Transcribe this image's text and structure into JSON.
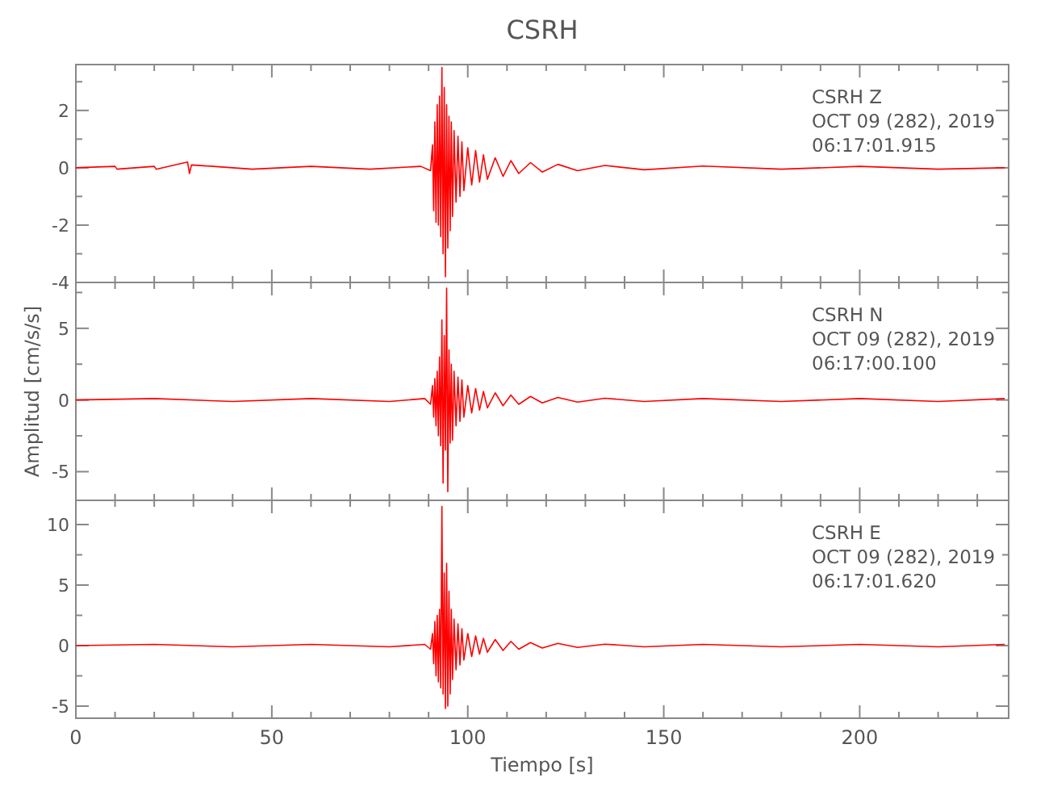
{
  "chart_data": [
    {
      "type": "line",
      "title": "CSRH",
      "annotations": [
        "CSRH   Z",
        "OCT 09 (282), 2019",
        "06:17:01.915"
      ],
      "tick_labels": "y",
      "xlim": [
        0,
        238
      ],
      "xticks": [
        0,
        {
          "value": 10,
          "label": null
        },
        {
          "value": 20,
          "label": null
        },
        {
          "value": 30,
          "label": null
        },
        {
          "value": 40,
          "label": null
        },
        50,
        {
          "value": 60,
          "label": null
        },
        {
          "value": 70,
          "label": null
        },
        {
          "value": 80,
          "label": null
        },
        {
          "value": 90,
          "label": null
        },
        100,
        {
          "value": 110,
          "label": null
        },
        {
          "value": 120,
          "label": null
        },
        {
          "value": 130,
          "label": null
        },
        {
          "value": 140,
          "label": null
        },
        150,
        {
          "value": 160,
          "label": null
        },
        {
          "value": 170,
          "label": null
        },
        {
          "value": 180,
          "label": null
        },
        {
          "value": 190,
          "label": null
        },
        200,
        {
          "value": 210,
          "label": null
        },
        {
          "value": 220,
          "label": null
        },
        {
          "value": 230,
          "label": null
        }
      ],
      "ylim": [
        -4,
        3.6
      ],
      "yticks": [
        -4,
        {
          "value": -3,
          "label": null
        },
        -2,
        {
          "value": -1,
          "label": null
        },
        0,
        {
          "value": 1,
          "label": null
        },
        2,
        {
          "value": 3,
          "label": null
        }
      ],
      "x": [
        0,
        10,
        10.5,
        20,
        20.5,
        28.5,
        29,
        29.5,
        35,
        45,
        60,
        75,
        88,
        90.5,
        91,
        91.3,
        91.6,
        91.9,
        92.2,
        92.5,
        92.8,
        93.1,
        93.4,
        93.7,
        94,
        94.3,
        94.6,
        94.9,
        95.2,
        95.5,
        95.8,
        96.1,
        96.5,
        97,
        97.5,
        98,
        98.5,
        99,
        100,
        101,
        102,
        103,
        104,
        105,
        107,
        109,
        111,
        113,
        116,
        119,
        123,
        128,
        135,
        145,
        160,
        180,
        200,
        220,
        237
      ],
      "series": [
        {
          "color": "#ff0000",
          "values": [
            0,
            0.05,
            -0.05,
            0.05,
            -0.05,
            0.2,
            -0.2,
            0.1,
            0.05,
            -0.05,
            0.05,
            -0.05,
            0.05,
            -0.1,
            0.8,
            -1.5,
            1.6,
            -1.9,
            2.2,
            -2,
            2.5,
            -2.4,
            3.5,
            -3,
            2.8,
            -3.8,
            2.2,
            -2.8,
            1.8,
            -2.2,
            1.6,
            -1.7,
            1.3,
            -1.2,
            1.1,
            -1,
            0.9,
            -0.8,
            0.7,
            -0.6,
            0.6,
            -0.5,
            0.45,
            -0.4,
            0.35,
            -0.3,
            0.25,
            -0.2,
            0.18,
            -0.15,
            0.12,
            -0.1,
            0.08,
            -0.07,
            0.06,
            -0.05,
            0.05,
            -0.05,
            0
          ]
        }
      ]
    },
    {
      "type": "line",
      "ylabel": "Amplitud [cm/s/s]",
      "annotations": [
        "CSRH   N",
        "OCT 09 (282), 2019",
        "06:17:00.100"
      ],
      "tick_labels": "y",
      "xlim": [
        0,
        238
      ],
      "xticks": [
        0,
        {
          "value": 10,
          "label": null
        },
        {
          "value": 20,
          "label": null
        },
        {
          "value": 30,
          "label": null
        },
        {
          "value": 40,
          "label": null
        },
        50,
        {
          "value": 60,
          "label": null
        },
        {
          "value": 70,
          "label": null
        },
        {
          "value": 80,
          "label": null
        },
        {
          "value": 90,
          "label": null
        },
        100,
        {
          "value": 110,
          "label": null
        },
        {
          "value": 120,
          "label": null
        },
        {
          "value": 130,
          "label": null
        },
        {
          "value": 140,
          "label": null
        },
        150,
        {
          "value": 160,
          "label": null
        },
        {
          "value": 170,
          "label": null
        },
        {
          "value": 180,
          "label": null
        },
        {
          "value": 190,
          "label": null
        },
        200,
        {
          "value": 210,
          "label": null
        },
        {
          "value": 220,
          "label": null
        },
        {
          "value": 230,
          "label": null
        }
      ],
      "ylim": [
        -7,
        8.2
      ],
      "yticks": [
        -5,
        {
          "value": -2.5,
          "label": null
        },
        0,
        {
          "value": 2.5,
          "label": null
        },
        5,
        {
          "value": 7.5,
          "label": null
        }
      ],
      "x": [
        0,
        20,
        40,
        60,
        80,
        89,
        90.5,
        91,
        91.3,
        91.6,
        91.9,
        92.2,
        92.5,
        92.8,
        93.1,
        93.4,
        93.7,
        94,
        94.3,
        94.6,
        94.9,
        95.2,
        95.5,
        95.8,
        96.1,
        96.5,
        97,
        97.5,
        98,
        98.5,
        99,
        100,
        101,
        102,
        103,
        104,
        105,
        107,
        109,
        111,
        113,
        116,
        119,
        123,
        128,
        135,
        145,
        160,
        180,
        200,
        220,
        237
      ],
      "series": [
        {
          "color": "#ff0000",
          "values": [
            0,
            0.1,
            -0.1,
            0.1,
            -0.1,
            0.1,
            -0.3,
            1,
            -1.2,
            1.5,
            -1.8,
            2,
            -2.5,
            3,
            -3.2,
            5.6,
            -5.8,
            4.5,
            -3.5,
            7.8,
            -6.4,
            3.5,
            -3,
            2.5,
            -2.8,
            2,
            -1.8,
            1.6,
            -1.5,
            1.4,
            -1.2,
            1,
            -0.9,
            0.8,
            -0.7,
            0.6,
            -0.55,
            0.5,
            -0.4,
            0.35,
            -0.3,
            0.25,
            -0.2,
            0.18,
            -0.15,
            0.12,
            -0.1,
            0.1,
            -0.1,
            0.1,
            -0.1,
            0.1
          ]
        }
      ]
    },
    {
      "type": "line",
      "xlabel": "Tiempo [s]",
      "annotations": [
        "CSRH   E",
        "OCT 09 (282), 2019",
        "06:17:01.620"
      ],
      "xlim": [
        0,
        238
      ],
      "xticks": [
        0,
        {
          "value": 10,
          "label": null
        },
        {
          "value": 20,
          "label": null
        },
        {
          "value": 30,
          "label": null
        },
        {
          "value": 40,
          "label": null
        },
        50,
        {
          "value": 60,
          "label": null
        },
        {
          "value": 70,
          "label": null
        },
        {
          "value": 80,
          "label": null
        },
        {
          "value": 90,
          "label": null
        },
        100,
        {
          "value": 110,
          "label": null
        },
        {
          "value": 120,
          "label": null
        },
        {
          "value": 130,
          "label": null
        },
        {
          "value": 140,
          "label": null
        },
        150,
        {
          "value": 160,
          "label": null
        },
        {
          "value": 170,
          "label": null
        },
        {
          "value": 180,
          "label": null
        },
        {
          "value": 190,
          "label": null
        },
        200,
        {
          "value": 210,
          "label": null
        },
        {
          "value": 220,
          "label": null
        },
        {
          "value": 230,
          "label": null
        }
      ],
      "ylim": [
        -6,
        12
      ],
      "yticks": [
        -5,
        {
          "value": -2.5,
          "label": null
        },
        0,
        {
          "value": 2.5,
          "label": null
        },
        5,
        {
          "value": 7.5,
          "label": null
        },
        10
      ],
      "x": [
        0,
        20,
        40,
        60,
        80,
        89,
        90.5,
        91,
        91.3,
        91.6,
        91.9,
        92.2,
        92.5,
        92.8,
        93.1,
        93.4,
        93.7,
        94,
        94.3,
        94.6,
        94.9,
        95.2,
        95.5,
        95.8,
        96.1,
        96.5,
        97,
        97.5,
        98,
        98.5,
        99,
        100,
        101,
        102,
        103,
        104,
        105,
        107,
        109,
        111,
        113,
        116,
        119,
        123,
        128,
        135,
        145,
        160,
        180,
        200,
        220,
        237
      ],
      "series": [
        {
          "color": "#ff0000",
          "values": [
            0,
            0.1,
            -0.1,
            0.1,
            -0.1,
            0.1,
            -0.3,
            1,
            -1.5,
            2,
            -2.5,
            2.5,
            -3,
            3,
            -3.5,
            11.5,
            -4,
            6,
            -5.2,
            6.8,
            -5,
            4.5,
            -4,
            3,
            -2.8,
            2.2,
            -2,
            1.8,
            -1.6,
            1.4,
            -1.2,
            1,
            -0.9,
            0.8,
            -0.7,
            0.6,
            -0.55,
            0.5,
            -0.4,
            0.35,
            -0.3,
            0.25,
            -0.2,
            0.18,
            -0.15,
            0.12,
            -0.1,
            0.1,
            -0.1,
            0.1,
            -0.1,
            0.1
          ]
        }
      ]
    }
  ]
}
